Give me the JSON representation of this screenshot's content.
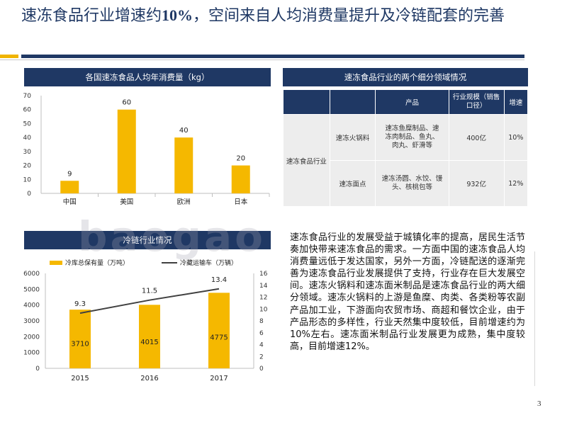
{
  "title": {
    "part1": "速冻食品行业增速约",
    "num": "10%",
    "part2": "，空间来自人均消费量提升及冷链配套的完善"
  },
  "charts": {
    "per_capita": {
      "header": "各国速冻食品人均年消费量（kg）"
    },
    "cold_chain": {
      "header": "冷链行业情况"
    }
  },
  "segments": {
    "header": "速冻食品行业的两个细分领域情况",
    "col_product": "产品",
    "col_scale": "行业规模（销售口径）",
    "col_growth": "增速",
    "industry": "速冻食品行业",
    "rows": [
      {
        "name": "速冻火锅料",
        "products": "速冻鱼糜制品、速冻肉制品、鱼丸、肉丸、虾滑等",
        "scale": "400亿",
        "growth": "10%"
      },
      {
        "name": "速冻面点",
        "products": "速冻汤圆、水饺、馒头、核桃包等",
        "scale": "932亿",
        "growth": "12%"
      }
    ]
  },
  "paragraph": "速冻食品行业的发展受益于城镇化率的提高，居民生活节奏加快带来速冻食品的需求。一方面中国的速冻食品人均消费量远低于发达国家，另外一方面，冷链配送的逐渐完善为速冻食品行业发展提供了支持，行业存在巨大发展空间。速冻火锅料和速冻面米制品是速冻食品行业的两大细分领域。速冻火锅料的上游是鱼糜、肉类、各类粉等农副产品加工业，下游面向农贸市场、商超和餐饮企业，由于产品形态的多样性，行业天然集中度较低，目前增速约为10%左右。速冻面米制品行业发展更为成熟，集中度较高，目前增速12%。",
  "watermark": "baogao",
  "page_number": "3",
  "colors": {
    "navy": "#1f3864",
    "bar": "#f5b800",
    "line": "#404040"
  },
  "chart_data": [
    {
      "type": "bar",
      "title": "各国速冻食品人均年消费量（kg）",
      "categories": [
        "中国",
        "美国",
        "欧洲",
        "日本"
      ],
      "values": [
        9,
        60,
        40,
        20
      ],
      "yticks": [
        0,
        10,
        20,
        30,
        40,
        50,
        60,
        70
      ],
      "ylim": [
        0,
        70
      ]
    },
    {
      "type": "bar+line",
      "title": "冷链行业情况",
      "categories": [
        "2015",
        "2016",
        "2017"
      ],
      "series": [
        {
          "name": "冷库总保有量（万吨）",
          "type": "bar",
          "axis": "left",
          "values": [
            3710,
            4015,
            4775
          ]
        },
        {
          "name": "冷藏运输车（万辆）",
          "type": "line",
          "axis": "right",
          "values": [
            9.3,
            11.5,
            13.4
          ]
        }
      ],
      "yleft_ticks": [
        0,
        1000,
        2000,
        3000,
        4000,
        5000,
        6000
      ],
      "yright_ticks": [
        0,
        2,
        4,
        6,
        8,
        10,
        12,
        14,
        16
      ],
      "ylim_left": [
        0,
        6000
      ],
      "ylim_right": [
        0,
        16
      ]
    }
  ]
}
